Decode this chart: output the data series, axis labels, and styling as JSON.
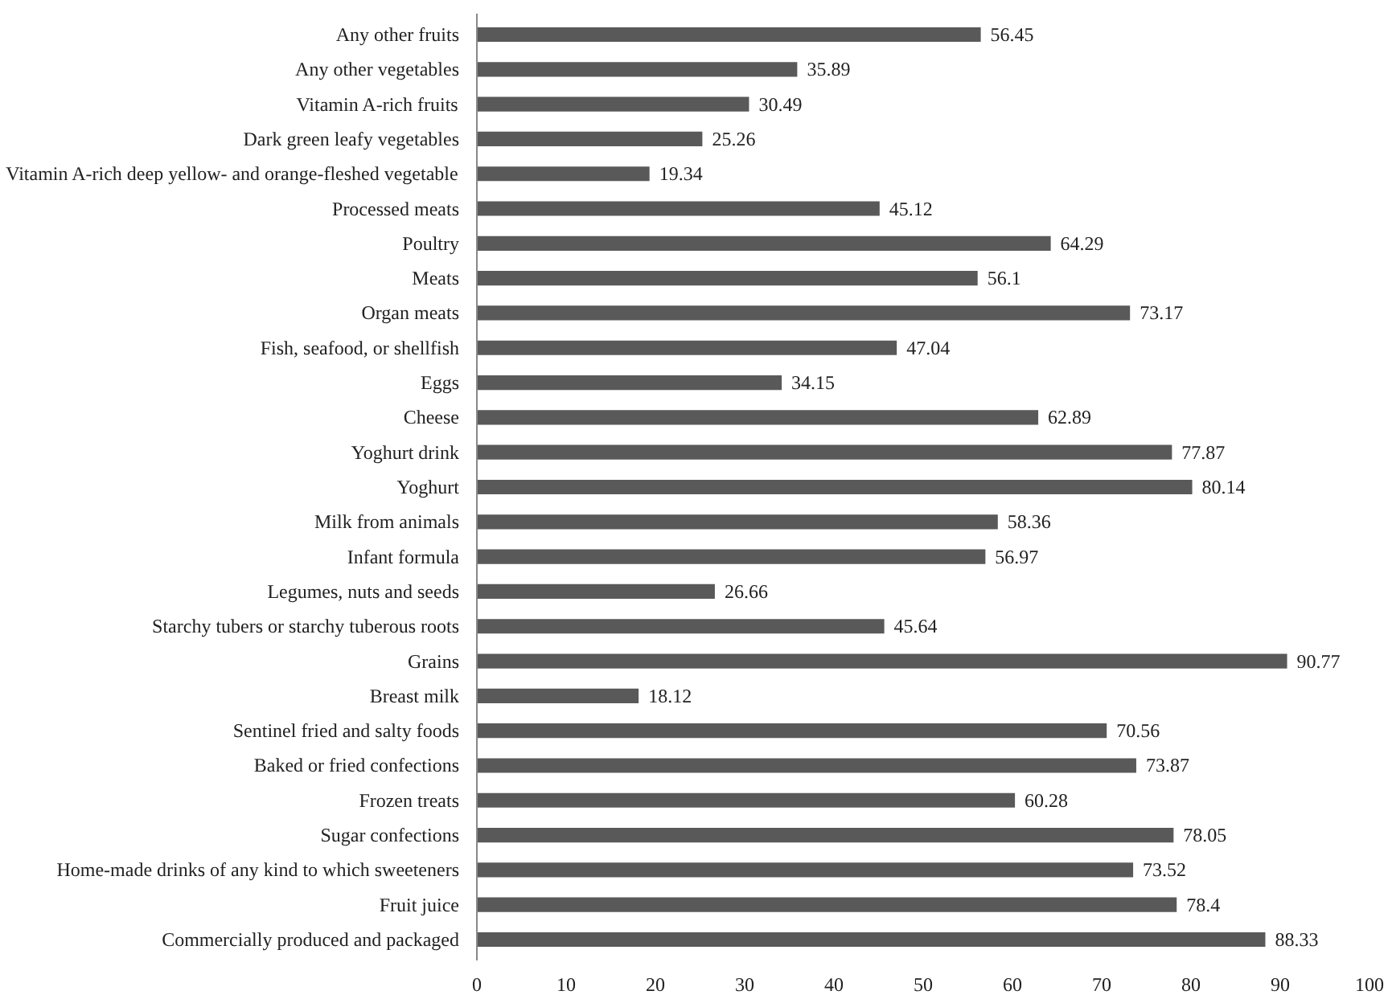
{
  "chart_data": {
    "type": "bar",
    "orientation": "horizontal",
    "categories": [
      "Any other fruits",
      "Any other vegetables",
      "Vitamin A-rich fruits",
      "Dark green leafy vegetables",
      "Vitamin A-rich deep yellow- and orange-fleshed vegetable",
      "Processed meats",
      "Poultry",
      "Meats",
      "Organ meats",
      "Fish, seafood, or shellfish",
      "Eggs",
      "Cheese",
      "Yoghurt drink",
      "Yoghurt",
      "Milk from animals",
      "Infant formula",
      "Legumes, nuts and seeds",
      "Starchy tubers or starchy tuberous roots",
      "Grains",
      "Breast milk",
      "Sentinel fried and salty foods",
      "Baked or fried confections",
      "Frozen treats",
      "Sugar confections",
      "Home-made drinks of any kind to which sweeteners",
      "Fruit juice",
      "Commercially produced and packaged"
    ],
    "values": [
      56.45,
      35.89,
      30.49,
      25.26,
      19.34,
      45.12,
      64.29,
      56.1,
      73.17,
      47.04,
      34.15,
      62.89,
      77.87,
      80.14,
      58.36,
      56.97,
      26.66,
      45.64,
      90.77,
      18.12,
      70.56,
      73.87,
      60.28,
      78.05,
      73.52,
      78.4,
      88.33
    ],
    "color": "#595959",
    "xlim": [
      0,
      100
    ],
    "xticks": [
      0,
      10,
      20,
      30,
      40,
      50,
      60,
      70,
      80,
      90,
      100
    ],
    "grid": false,
    "data_labels": true
  }
}
